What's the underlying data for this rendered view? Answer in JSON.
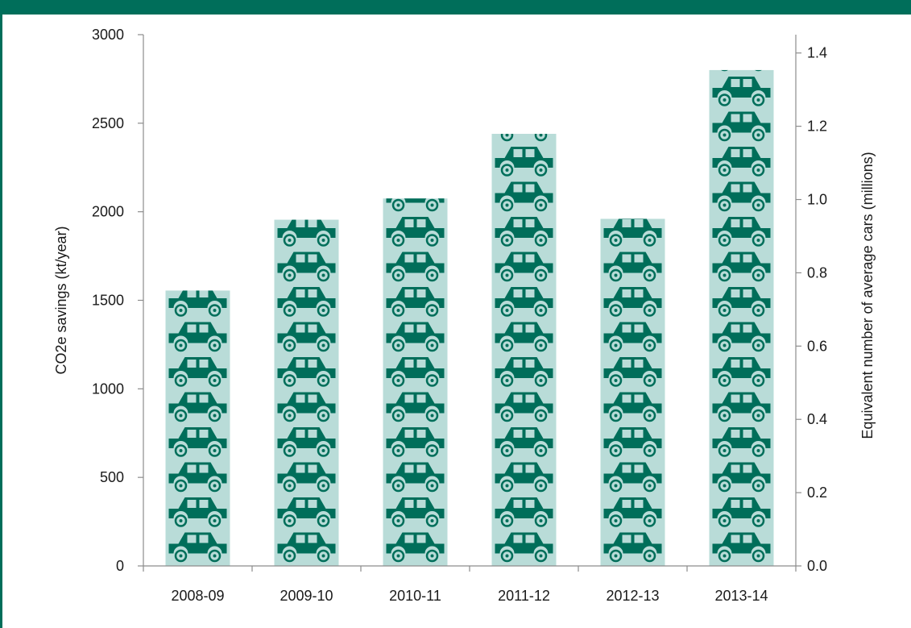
{
  "theme": {
    "header_color": "#006e5a",
    "bar_fill": "#b9dcd8",
    "car_color": "#006e5a",
    "axis_color": "#8c8c8c"
  },
  "chart_data": {
    "type": "bar",
    "title": "",
    "categories": [
      "2008-09",
      "2009-10",
      "2010-11",
      "2011-12",
      "2012-13",
      "2013-14"
    ],
    "values": [
      1555,
      1955,
      2075,
      2440,
      1960,
      2800
    ],
    "xlabel": "",
    "ylabel": "CO2e savings (kt/year)",
    "ylim": [
      0,
      3000
    ],
    "yticks": [
      "0",
      "500",
      "1000",
      "1500",
      "2000",
      "2500",
      "3000"
    ],
    "y2label": "Equivalent number of average cars (millions)",
    "y2lim": [
      0.0,
      1.45
    ],
    "y2ticks": [
      "0.0",
      "0.2",
      "0.4",
      "0.6",
      "0.8",
      "1.0",
      "1.2",
      "1.4"
    ],
    "grid": false,
    "legend": "none",
    "bar_pattern_icon": "car-icon"
  }
}
